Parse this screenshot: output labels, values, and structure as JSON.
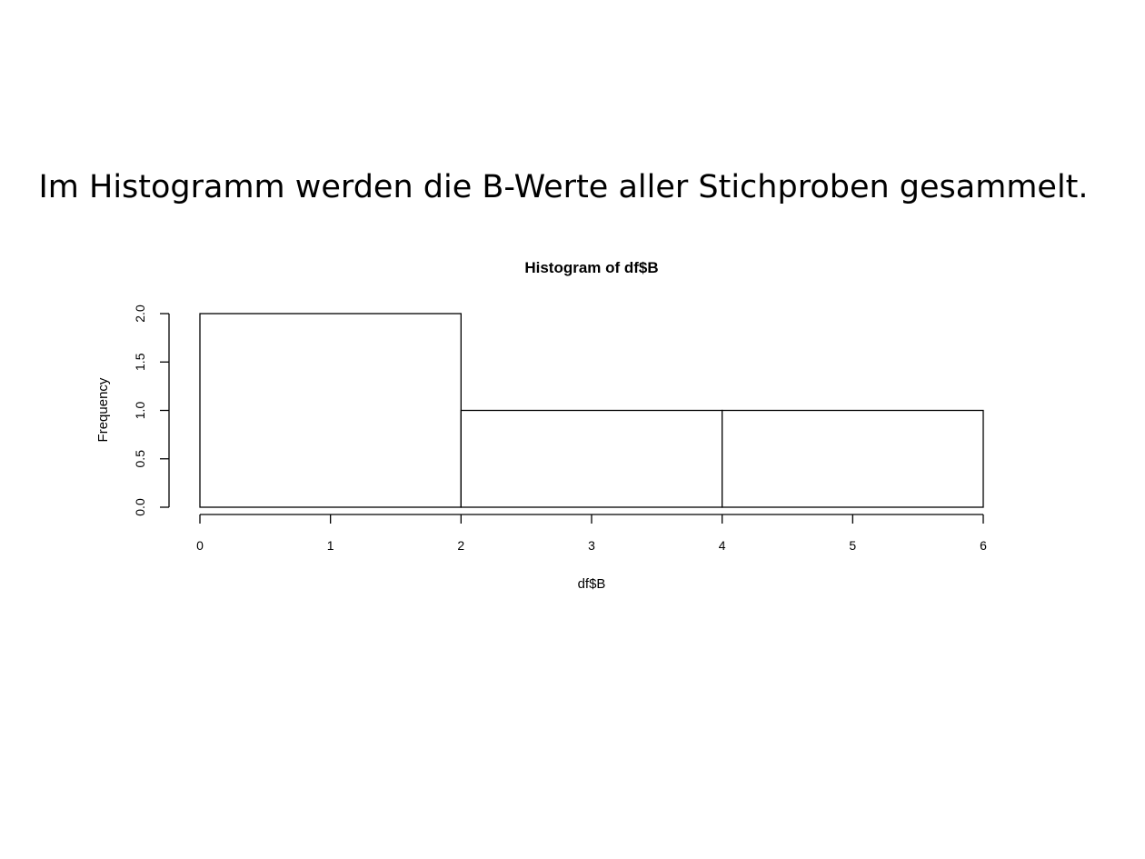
{
  "slide": {
    "heading": "Im Histogramm werden die B-Werte aller Stichproben gesammelt."
  },
  "chart_data": {
    "type": "bar",
    "title": "Histogram of df$B",
    "xlabel": "df$B",
    "ylabel": "Frequency",
    "bins": [
      {
        "start": 0,
        "end": 2,
        "count": 2
      },
      {
        "start": 2,
        "end": 4,
        "count": 1
      },
      {
        "start": 4,
        "end": 6,
        "count": 1
      }
    ],
    "xlim": [
      0,
      6
    ],
    "ylim": [
      0,
      2
    ],
    "x_ticks": [
      "0",
      "1",
      "2",
      "3",
      "4",
      "5",
      "6"
    ],
    "y_ticks": [
      "0.0",
      "0.5",
      "1.0",
      "1.5",
      "2.0"
    ],
    "grid": false,
    "legend": "none",
    "colors": {
      "bar_fill": "#ffffff",
      "bar_stroke": "#000000"
    }
  }
}
